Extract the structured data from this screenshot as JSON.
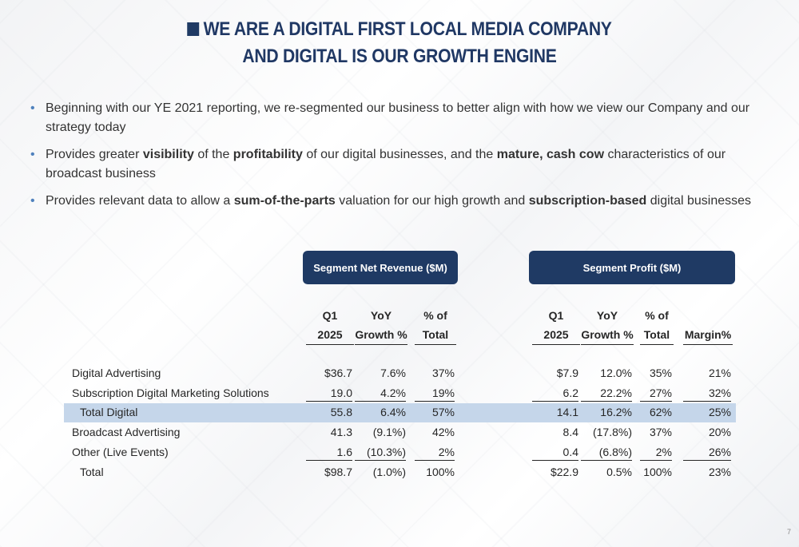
{
  "title": {
    "line1": "WE ARE A DIGITAL FIRST LOCAL MEDIA COMPANY",
    "line2": "AND DIGITAL IS OUR GROWTH ENGINE"
  },
  "bullets": [
    {
      "runs": [
        {
          "t": "Beginning with our YE 2021 reporting, we re-segmented our business to better align with how we view our Company and our strategy today",
          "b": false
        }
      ]
    },
    {
      "runs": [
        {
          "t": "Provides greater ",
          "b": false
        },
        {
          "t": "visibility",
          "b": true
        },
        {
          "t": " of the ",
          "b": false
        },
        {
          "t": "profitability",
          "b": true
        },
        {
          "t": " of our digital businesses, and the ",
          "b": false
        },
        {
          "t": "mature, cash cow",
          "b": true
        },
        {
          "t": " characteristics of our broadcast business",
          "b": false
        }
      ]
    },
    {
      "runs": [
        {
          "t": "Provides relevant data to allow a ",
          "b": false
        },
        {
          "t": "sum-of-the-parts",
          "b": true
        },
        {
          "t": " valuation for our high growth and ",
          "b": false
        },
        {
          "t": "subscription-based",
          "b": true
        },
        {
          "t": " digital businesses",
          "b": false
        }
      ]
    }
  ],
  "table": {
    "revenue_header": "Segment Net Revenue ($M)",
    "profit_header": "Segment Profit ($M)",
    "revenue_columns": [
      {
        "l1": "Q1",
        "l2": "2025"
      },
      {
        "l1": "YoY",
        "l2": "Growth %"
      },
      {
        "l1": "% of",
        "l2": "Total"
      }
    ],
    "profit_columns": [
      {
        "l1": "Q1",
        "l2": "2025"
      },
      {
        "l1": "YoY",
        "l2": "Growth %"
      },
      {
        "l1": "% of",
        "l2": "Total"
      },
      {
        "l1": "",
        "l2": "Margin%"
      }
    ],
    "rows": [
      {
        "label": "Digital Advertising",
        "rev": [
          "$36.7",
          "7.6%",
          "37%"
        ],
        "prof": [
          "$7.9",
          "12.0%",
          "35%",
          "21%"
        ]
      },
      {
        "label": "Subscription Digital Marketing Solutions",
        "rev": [
          "19.0",
          "4.2%",
          "19%"
        ],
        "prof": [
          "6.2",
          "22.2%",
          "27%",
          "32%"
        ]
      },
      {
        "label": "Total Digital",
        "rev": [
          "55.8",
          "6.4%",
          "57%"
        ],
        "prof": [
          "14.1",
          "16.2%",
          "62%",
          "25%"
        ]
      },
      {
        "label": "Broadcast Advertising",
        "rev": [
          "41.3",
          "(9.1%)",
          "42%"
        ],
        "prof": [
          "8.4",
          "(17.8%)",
          "37%",
          "20%"
        ]
      },
      {
        "label": "Other (Live Events)",
        "rev": [
          "1.6",
          "(10.3%)",
          "2%"
        ],
        "prof": [
          "0.4",
          "(6.8%)",
          "2%",
          "26%"
        ]
      },
      {
        "label": "Total",
        "rev": [
          "$98.7",
          "(1.0%)",
          "100%"
        ],
        "prof": [
          "$22.9",
          "0.5%",
          "100%",
          "23%"
        ]
      }
    ]
  },
  "page_number": "7",
  "colors": {
    "navy": "#1f3a64",
    "highlight": "#c5d6ea",
    "bullet": "#4f81bd"
  }
}
